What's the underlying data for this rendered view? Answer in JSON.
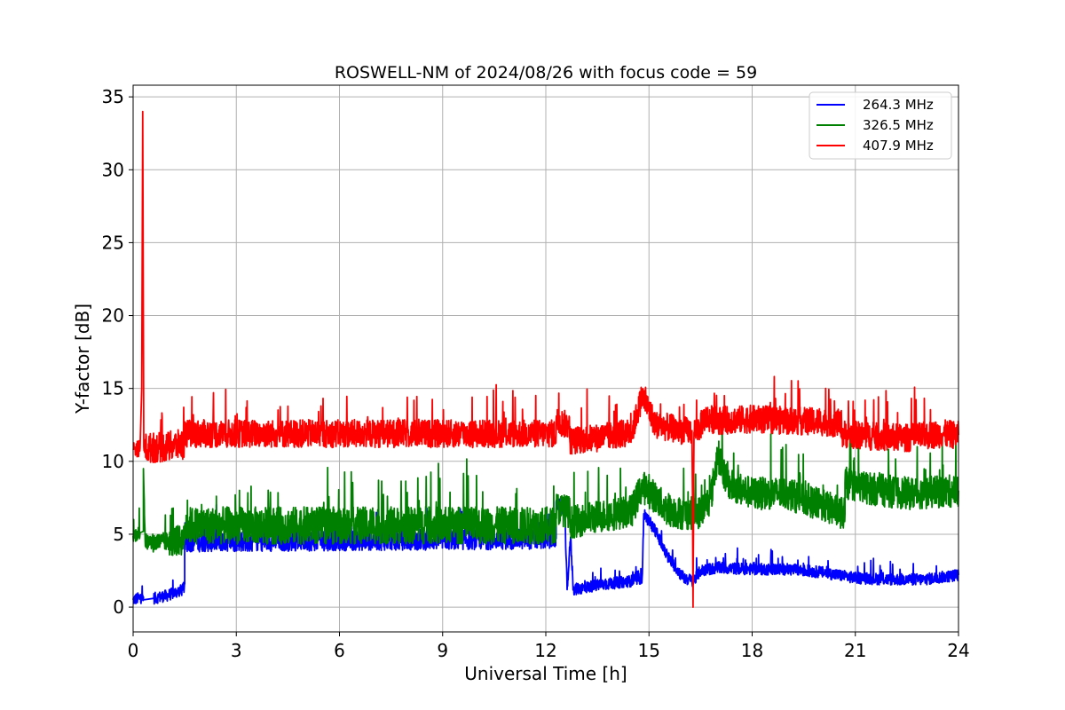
{
  "chart_data": {
    "type": "line",
    "title": "ROSWELL-NM of 2024/08/26 with focus code = 59",
    "xlabel": "Universal Time [h]",
    "ylabel": "Y-factor [dB]",
    "xlim": [
      0,
      24
    ],
    "ylim": [
      -1.7,
      35.8
    ],
    "xticks": [
      "0",
      "3",
      "6",
      "9",
      "12",
      "15",
      "18",
      "21",
      "24"
    ],
    "yticks": [
      "0",
      "5",
      "10",
      "15",
      "20",
      "25",
      "30",
      "35"
    ],
    "grid": true,
    "legend_position": "upper right",
    "series": [
      {
        "name": "264.3 MHz",
        "color": "#0000ff",
        "noise": [
          0.5,
          0,
          0.5,
          0.5,
          0.7,
          0.9,
          0.5
        ],
        "x": [
          0,
          0.3,
          0.3,
          0.6,
          1.0,
          1.45,
          1.5,
          1.5,
          12.3,
          12.3,
          12.55,
          12.62,
          12.72,
          12.8,
          13.5,
          14.5,
          14.8,
          14.85,
          15.2,
          15.5,
          16.0,
          16.3,
          16.5,
          17.0,
          18.0,
          19.0,
          20.0,
          21.0,
          22.0,
          23.0,
          24.0
        ],
        "y": [
          0.5,
          0.7,
          0.5,
          0.6,
          0.8,
          1.2,
          1.6,
          4.5,
          4.7,
          7.2,
          6.5,
          1.2,
          4.8,
          1.2,
          1.5,
          1.8,
          2.0,
          6.4,
          5.2,
          3.6,
          2.0,
          1.8,
          2.5,
          2.7,
          2.6,
          2.6,
          2.4,
          2.0,
          1.9,
          1.9,
          2.2
        ]
      },
      {
        "name": "326.5 MHz",
        "color": "#008000",
        "noise": [
          0.6,
          0,
          0.6,
          0.7,
          0.8,
          1.3,
          1.6,
          1.4
        ],
        "x": [
          0,
          0.2,
          0.3,
          0.3,
          0.35,
          0.5,
          1.0,
          1.5,
          1.5,
          12.3,
          12.3,
          12.7,
          12.7,
          13.5,
          14.5,
          14.8,
          15.2,
          15.5,
          16.0,
          16.5,
          16.8,
          17.0,
          17.3,
          18.0,
          19.0,
          20.0,
          20.7,
          20.7,
          21.5,
          22.5,
          23.5,
          24.0
        ],
        "y": [
          4.9,
          5.1,
          5.2,
          9.5,
          4.5,
          4.4,
          4.5,
          4.6,
          5.6,
          5.6,
          6.8,
          6.5,
          5.8,
          6.2,
          6.6,
          8.3,
          7.5,
          6.7,
          6.4,
          6.5,
          7.5,
          10.5,
          8.4,
          7.8,
          7.8,
          7.0,
          6.4,
          8.5,
          8.1,
          7.8,
          7.9,
          8.0
        ]
      },
      {
        "name": "407.9 MHz",
        "color": "#ff0000",
        "noise": [
          0.7,
          0,
          0,
          0.6,
          0.6,
          1.3,
          1.3,
          1.2
        ],
        "x": [
          0,
          0.2,
          0.25,
          0.28,
          0.31,
          0.35,
          1.0,
          1.5,
          1.5,
          12.3,
          12.3,
          12.7,
          12.7,
          13.5,
          14.5,
          14.8,
          15.2,
          16.0,
          16.25,
          16.28,
          16.31,
          16.34,
          16.5,
          16.6,
          17.0,
          18.0,
          19.0,
          20.0,
          20.6,
          20.6,
          21.5,
          22.5,
          23.5,
          24.0
        ],
        "y": [
          10.8,
          10.9,
          15.0,
          34.0,
          11.0,
          10.9,
          11.0,
          11.2,
          11.9,
          11.9,
          12.8,
          12.4,
          11.4,
          11.6,
          12.0,
          14.5,
          12.5,
          12.1,
          12.1,
          0.0,
          12.0,
          12.1,
          12.4,
          13.0,
          12.8,
          12.9,
          12.8,
          12.7,
          12.6,
          11.9,
          11.7,
          11.6,
          11.9,
          11.8
        ]
      }
    ]
  }
}
